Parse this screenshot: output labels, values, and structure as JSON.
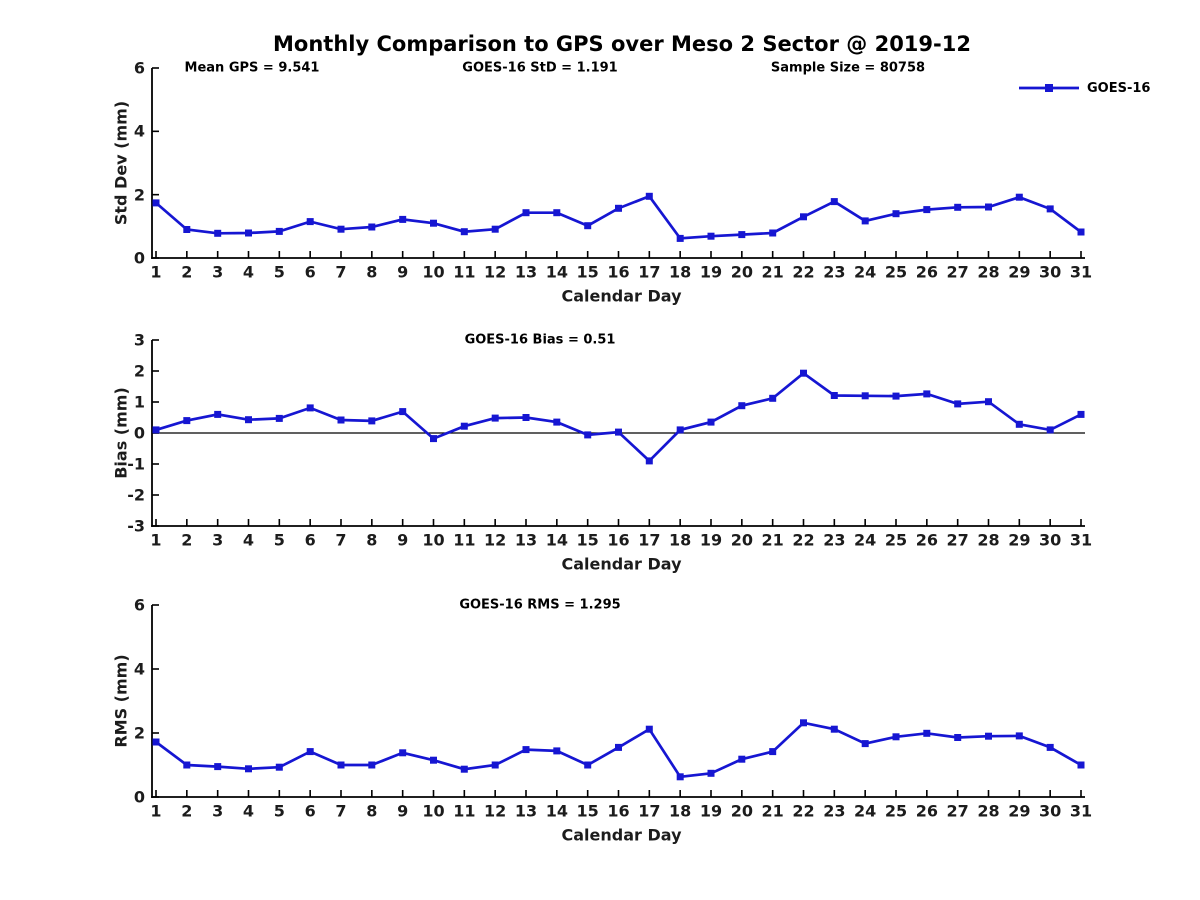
{
  "title": "Monthly Comparison to GPS over Meso 2 Sector @ 2019-12",
  "legend": {
    "label": "GOES-16"
  },
  "colors": {
    "series": "#1616d2",
    "axis": "#000000",
    "tick_text": "#1c1c1c"
  },
  "chart_data": [
    {
      "type": "line",
      "id": "std-dev",
      "ylabel": "Std Dev (mm)",
      "xlabel": "Calendar Day",
      "ylim": [
        0,
        6
      ],
      "yticks": [
        0,
        2,
        4,
        6
      ],
      "zero_line": false,
      "annotations": [
        "Mean GPS = 9.541",
        "GOES-16 StD = 1.191",
        "Sample Size = 80758"
      ],
      "x": [
        1,
        2,
        3,
        4,
        5,
        6,
        7,
        8,
        9,
        10,
        11,
        12,
        13,
        14,
        15,
        16,
        17,
        18,
        19,
        20,
        21,
        22,
        23,
        24,
        25,
        26,
        27,
        28,
        29,
        30,
        31
      ],
      "series": [
        {
          "name": "GOES-16",
          "values": [
            1.74,
            0.9,
            0.78,
            0.79,
            0.84,
            1.15,
            0.91,
            0.98,
            1.22,
            1.1,
            0.83,
            0.91,
            1.43,
            1.43,
            1.02,
            1.57,
            1.95,
            0.62,
            0.69,
            0.74,
            0.79,
            1.3,
            1.78,
            1.17,
            1.4,
            1.53,
            1.6,
            1.61,
            1.92,
            1.55,
            0.82
          ]
        }
      ]
    },
    {
      "type": "line",
      "id": "bias",
      "ylabel": "Bias (mm)",
      "xlabel": "Calendar Day",
      "ylim": [
        -3,
        3
      ],
      "yticks": [
        -3,
        -2,
        -1,
        0,
        1,
        2,
        3
      ],
      "zero_line": true,
      "annotations": [
        "GOES-16 Bias = 0.51"
      ],
      "x": [
        1,
        2,
        3,
        4,
        5,
        6,
        7,
        8,
        9,
        10,
        11,
        12,
        13,
        14,
        15,
        16,
        17,
        18,
        19,
        20,
        21,
        22,
        23,
        24,
        25,
        26,
        27,
        28,
        29,
        30,
        31
      ],
      "series": [
        {
          "name": "GOES-16",
          "values": [
            0.1,
            0.4,
            0.6,
            0.43,
            0.47,
            0.81,
            0.42,
            0.39,
            0.69,
            -0.18,
            0.22,
            0.48,
            0.5,
            0.35,
            -0.06,
            0.03,
            -0.9,
            0.1,
            0.35,
            0.88,
            1.12,
            1.93,
            1.21,
            1.2,
            1.19,
            1.26,
            0.94,
            1.01,
            0.28,
            0.1,
            0.6
          ]
        }
      ]
    },
    {
      "type": "line",
      "id": "rms",
      "ylabel": "RMS (mm)",
      "xlabel": "Calendar Day",
      "ylim": [
        0,
        6
      ],
      "yticks": [
        0,
        2,
        4,
        6
      ],
      "zero_line": false,
      "annotations": [
        "GOES-16 RMS = 1.295"
      ],
      "x": [
        1,
        2,
        3,
        4,
        5,
        6,
        7,
        8,
        9,
        10,
        11,
        12,
        13,
        14,
        15,
        16,
        17,
        18,
        19,
        20,
        21,
        22,
        23,
        24,
        25,
        26,
        27,
        28,
        29,
        30,
        31
      ],
      "series": [
        {
          "name": "GOES-16",
          "values": [
            1.72,
            1.0,
            0.95,
            0.88,
            0.93,
            1.42,
            1.0,
            1.0,
            1.38,
            1.15,
            0.87,
            1.0,
            1.48,
            1.44,
            1.0,
            1.55,
            2.12,
            0.63,
            0.74,
            1.18,
            1.42,
            2.32,
            2.12,
            1.67,
            1.88,
            1.99,
            1.86,
            1.9,
            1.91,
            1.55,
            1.0
          ]
        }
      ]
    }
  ]
}
